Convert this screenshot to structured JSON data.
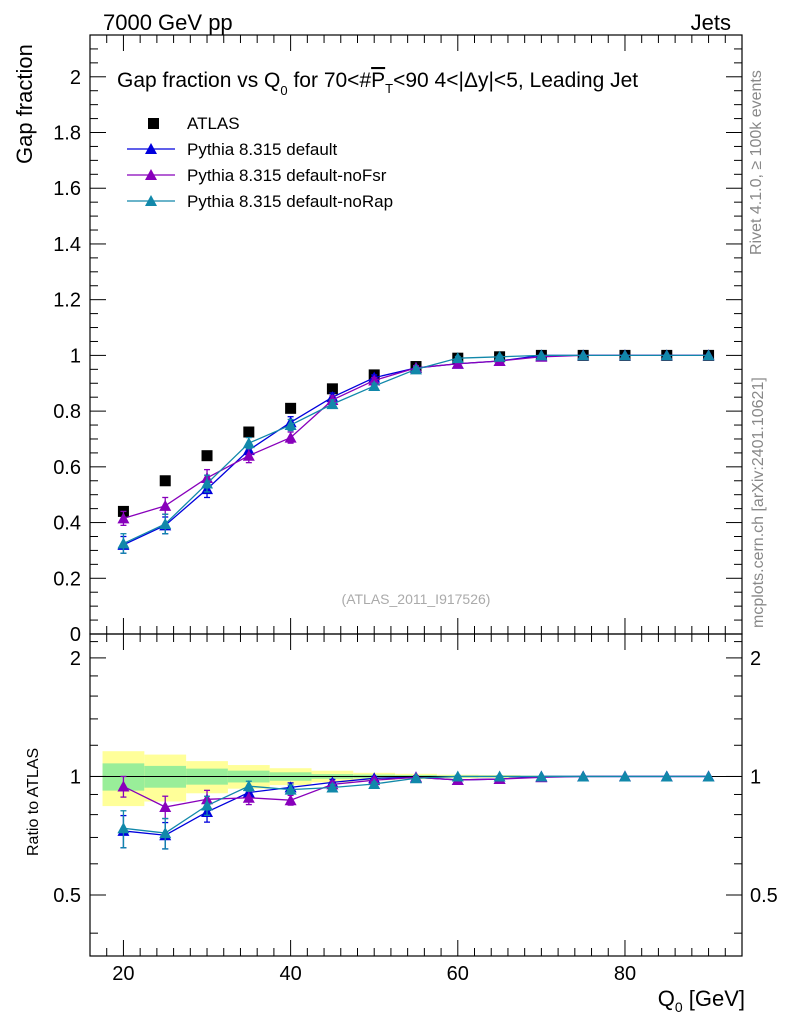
{
  "header": {
    "left": "7000 GeV pp",
    "right": "Jets"
  },
  "side_labels": {
    "rivet": "Rivet 4.1.0, ≥ 100k events",
    "source": "mcplots.cern.ch [arXiv:2401.10621]"
  },
  "chart_data": {
    "type": "scatter",
    "title": "Gap fraction vs Q₀ for 70<#P̅ₜ<90  4<|Δy|<5, Leading Jet",
    "title_parts": {
      "a": "Gap fraction vs Q",
      "a_sub": "0",
      "b": " for 70<#",
      "b_over": "P",
      "b_sub": "T",
      "c": "<90  4<|Δy|<5, Leading Jet"
    },
    "watermark": "(ATLAS_2011_I917526)",
    "xlabel": "Q₀ [GeV]",
    "xlabel_parts": {
      "main": "Q",
      "sub": "0",
      "unit": " [GeV]"
    },
    "ylabel": "Gap fraction",
    "ratio_ylabel": "Ratio to ATLAS",
    "xlim": [
      16,
      94
    ],
    "ylim": [
      0,
      2.15
    ],
    "ratio_ylim": [
      0.35,
      2.3
    ],
    "x_ticks": [
      20,
      40,
      60,
      80
    ],
    "x_tick_labels": [
      "20",
      "40",
      "60",
      "80"
    ],
    "y_ticks": [
      0,
      0.2,
      0.4,
      0.6,
      0.8,
      1,
      1.2,
      1.4,
      1.6,
      1.8,
      2
    ],
    "y_tick_labels": [
      "0",
      "0.2",
      "0.4",
      "0.6",
      "0.8",
      "1",
      "1.2",
      "1.4",
      "1.6",
      "1.8",
      "2"
    ],
    "ratio_ticks": [
      0.5,
      1,
      2
    ],
    "ratio_tick_labels": [
      "0.5",
      "1",
      "2"
    ],
    "x": [
      20,
      25,
      30,
      35,
      40,
      45,
      50,
      55,
      60,
      65,
      70,
      75,
      80,
      85,
      90
    ],
    "bin_edges": [
      17.5,
      22.5,
      27.5,
      32.5,
      37.5,
      42.5,
      47.5,
      52.5,
      57.5,
      62.5,
      67.5,
      72.5,
      77.5,
      82.5,
      87.5,
      92.5
    ],
    "data": {
      "name": "ATLAS",
      "color": "#000000",
      "values": [
        0.44,
        0.55,
        0.64,
        0.725,
        0.81,
        0.88,
        0.93,
        0.96,
        0.99,
        0.995,
        1.0,
        1.0,
        1.0,
        1.0,
        1.0
      ],
      "band_inner": [
        0.035,
        0.035,
        0.03,
        0.025,
        0.02,
        0.012,
        0.01,
        0.008,
        0.005,
        0.004,
        0.003,
        0.002,
        0.002,
        0.001,
        0.001
      ],
      "band_outer": [
        0.07,
        0.075,
        0.06,
        0.05,
        0.04,
        0.03,
        0.02,
        0.015,
        0.01,
        0.008,
        0.005,
        0.004,
        0.003,
        0.002,
        0.002
      ],
      "band_inner_color": "#99ee99",
      "band_outer_color": "#ffff99"
    },
    "series": [
      {
        "name": "Pythia 8.315 default",
        "color": "#0000dd",
        "values": [
          0.32,
          0.39,
          0.52,
          0.66,
          0.76,
          0.85,
          0.92,
          0.955,
          0.97,
          0.98,
          1.0,
          1.0,
          1.0,
          1.0,
          1.0
        ],
        "errors": [
          0.03,
          0.03,
          0.03,
          0.02,
          0.02,
          0.015,
          0.01,
          0.008,
          0.006,
          0.005,
          0.003,
          0.002,
          0.002,
          0.001,
          0.001
        ]
      },
      {
        "name": "Pythia 8.315 default-noFsr",
        "color": "#8800bb",
        "values": [
          0.415,
          0.46,
          0.56,
          0.64,
          0.705,
          0.84,
          0.91,
          0.955,
          0.97,
          0.98,
          0.995,
          1.0,
          1.0,
          1.0,
          1.0
        ],
        "errors": [
          0.025,
          0.03,
          0.03,
          0.025,
          0.02,
          0.015,
          0.01,
          0.008,
          0.006,
          0.005,
          0.003,
          0.002,
          0.002,
          0.001,
          0.001
        ]
      },
      {
        "name": "Pythia 8.315 default-noRap",
        "color": "#1188aa",
        "values": [
          0.325,
          0.395,
          0.54,
          0.685,
          0.75,
          0.825,
          0.89,
          0.95,
          0.99,
          0.995,
          1.0,
          1.0,
          1.0,
          1.0,
          1.0
        ],
        "errors": [
          0.035,
          0.035,
          0.03,
          0.02,
          0.02,
          0.015,
          0.01,
          0.008,
          0.006,
          0.005,
          0.003,
          0.002,
          0.002,
          0.001,
          0.001
        ]
      }
    ],
    "legend_position": "top-left"
  }
}
